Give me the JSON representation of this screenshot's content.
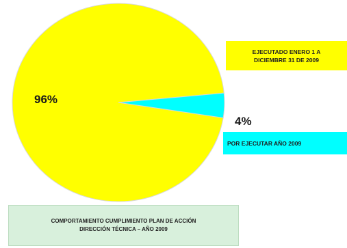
{
  "chart_data": {
    "type": "pie",
    "slices": [
      {
        "label": "EJECUTADO ENERO 1 A DICIEMBRE 31 DE 2009",
        "value": 96,
        "value_label": "96%",
        "color": "#ffff00"
      },
      {
        "label": "POR EJECUTAR AÑO 2009",
        "value": 4,
        "value_label": "4%",
        "color": "#00ffff"
      }
    ],
    "legend": {
      "ejecutado_line1": "EJECUTADO ENERO 1 A",
      "ejecutado_line2": "DICIEMBRE 31 DE 2009",
      "por_ejecutar": "POR EJECUTAR AÑO 2009",
      "ejecutado_bg": "#ffff00",
      "por_ejecutar_bg": "#00ffff"
    },
    "caption": {
      "line1": "COMPORTAMIENTO CUMPLIMIENTO PLAN DE ACCIÓN",
      "line2": "DIRECCIÓN TÉCNICA – AÑO 2009",
      "bg": "#d8f0dc"
    },
    "slice_outline": "#d8d8d8"
  }
}
